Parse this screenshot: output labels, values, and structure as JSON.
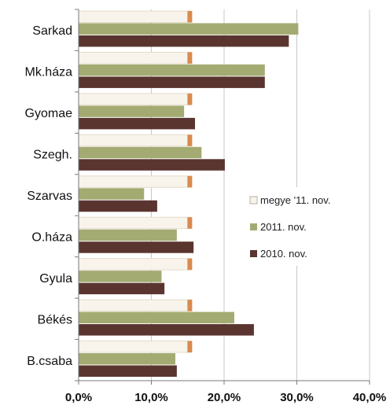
{
  "chart_data": {
    "type": "bar",
    "orientation": "horizontal",
    "categories": [
      "Sarkad",
      "Mk.háza",
      "Gyomae",
      "Szegh.",
      "Szarvas",
      "O.háza",
      "Gyula",
      "Békés",
      "B.csaba"
    ],
    "series": [
      {
        "name": "megye '11. nov.",
        "color": "#f8f4ec",
        "values": [
          15.5,
          15.5,
          15.5,
          15.5,
          15.5,
          15.5,
          15.5,
          15.5,
          15.5
        ]
      },
      {
        "name": "2011. nov.",
        "color": "#a4ab72",
        "values": [
          30.2,
          25.6,
          14.5,
          16.9,
          9.0,
          13.5,
          11.4,
          21.4,
          13.3
        ]
      },
      {
        "name": "2010. nov.",
        "color": "#5a3530",
        "values": [
          28.9,
          25.6,
          16.0,
          20.1,
          10.8,
          15.8,
          11.8,
          24.1,
          13.5
        ]
      }
    ],
    "xlim": [
      0,
      40
    ],
    "xticks": [
      0,
      10,
      20,
      30,
      40
    ],
    "xtick_labels": [
      "0,0%",
      "10,0%",
      "20,0%",
      "30,0%",
      "40,0%"
    ],
    "grid": true,
    "legend_position": "right-middle",
    "title": "",
    "xlabel": "",
    "ylabel": ""
  }
}
